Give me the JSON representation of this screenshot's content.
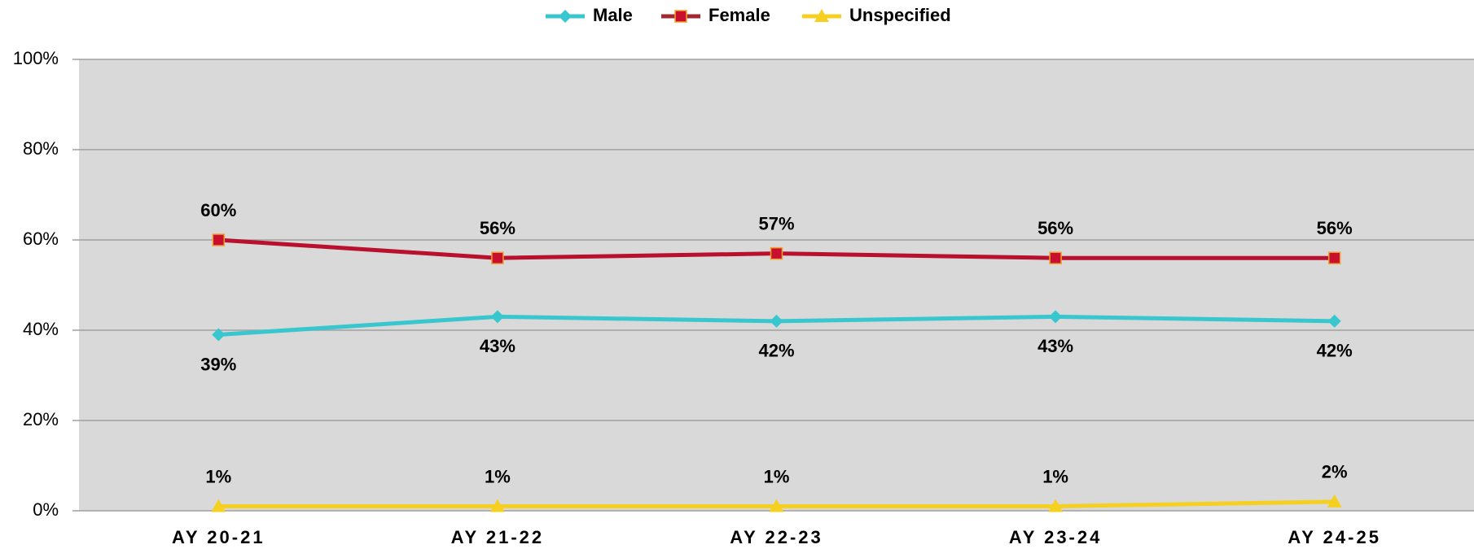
{
  "chart_data": {
    "type": "line",
    "categories": [
      "AY 20-21",
      "AY 21-22",
      "AY 22-23",
      "AY 23-24",
      "AY 24-25"
    ],
    "series": [
      {
        "name": "Male",
        "color": "#38c6cf",
        "marker": "diamond",
        "values": [
          39,
          43,
          42,
          43,
          42
        ],
        "value_labels": [
          "39%",
          "43%",
          "42%",
          "43%",
          "42%"
        ],
        "label_position": "below"
      },
      {
        "name": "Female",
        "color": "#b8102e",
        "marker": "square",
        "values": [
          60,
          56,
          57,
          56,
          56
        ],
        "value_labels": [
          "60%",
          "56%",
          "57%",
          "56%",
          "56%"
        ],
        "label_position": "above"
      },
      {
        "name": "Unspecified",
        "color": "#f5d020",
        "marker": "triangle",
        "values": [
          1,
          1,
          1,
          1,
          2
        ],
        "value_labels": [
          "1%",
          "1%",
          "1%",
          "1%",
          "2%"
        ],
        "label_position": "above"
      }
    ],
    "ylim": [
      0,
      100
    ],
    "yticks": [
      {
        "value": 0,
        "label": "0%"
      },
      {
        "value": 20,
        "label": "20%"
      },
      {
        "value": 40,
        "label": "40%"
      },
      {
        "value": 60,
        "label": "60%"
      },
      {
        "value": 80,
        "label": "80%"
      },
      {
        "value": 100,
        "label": "100%"
      }
    ],
    "grid": true,
    "legend": "top"
  }
}
